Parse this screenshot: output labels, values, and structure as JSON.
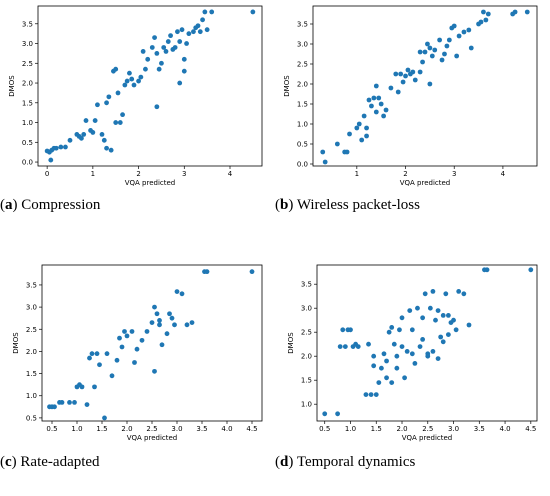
{
  "chart_data": [
    {
      "type": "scatter",
      "panel_id": "a",
      "caption": "Compression",
      "xlabel": "VQA predicted",
      "ylabel": "DMOS",
      "xlim": [
        -0.2,
        4.7
      ],
      "ylim": [
        -0.1,
        3.95
      ],
      "xticks": [
        "0",
        "1",
        "2",
        "3",
        "4"
      ],
      "yticks": [
        "0.0",
        "0.5",
        "1.0",
        "1.5",
        "2.0",
        "2.5",
        "3.0",
        "3.5"
      ],
      "color": "#1f77b4",
      "x": [
        0.0,
        0.05,
        0.1,
        0.15,
        0.2,
        0.3,
        0.4,
        0.5,
        0.08,
        0.65,
        0.7,
        0.75,
        0.8,
        0.85,
        0.95,
        1.0,
        1.05,
        1.1,
        1.2,
        1.25,
        1.3,
        1.35,
        1.4,
        1.45,
        1.5,
        1.55,
        1.6,
        1.65,
        1.7,
        1.75,
        1.8,
        1.85,
        1.9,
        2.0,
        2.05,
        2.1,
        2.15,
        2.2,
        2.3,
        2.35,
        2.4,
        2.45,
        2.5,
        2.55,
        2.6,
        2.65,
        2.7,
        2.75,
        2.8,
        2.85,
        2.9,
        2.95,
        3.0,
        3.05,
        3.1,
        3.2,
        3.25,
        3.3,
        3.35,
        3.4,
        3.45,
        3.5,
        3.6,
        4.5,
        1.3,
        1.5,
        2.4,
        2.9,
        3.0
      ],
      "y": [
        0.28,
        0.25,
        0.3,
        0.35,
        0.35,
        0.38,
        0.38,
        0.55,
        0.05,
        0.7,
        0.65,
        0.6,
        0.7,
        1.05,
        0.8,
        0.75,
        1.05,
        1.45,
        0.7,
        0.55,
        1.5,
        1.65,
        0.3,
        2.3,
        2.35,
        1.75,
        1.0,
        1.2,
        1.95,
        2.05,
        2.25,
        2.1,
        1.95,
        2.05,
        2.15,
        2.8,
        2.35,
        2.6,
        2.9,
        3.15,
        2.75,
        2.35,
        2.5,
        2.9,
        2.8,
        3.05,
        3.2,
        2.85,
        2.9,
        3.3,
        3.05,
        3.35,
        2.6,
        3.0,
        3.25,
        3.3,
        3.4,
        3.45,
        3.3,
        3.6,
        3.8,
        3.35,
        3.8,
        3.8,
        0.35,
        1.0,
        1.4,
        2.0,
        2.3
      ]
    },
    {
      "type": "scatter",
      "panel_id": "b",
      "caption": "Wireless packet-loss",
      "xlabel": "VQA predicted",
      "ylabel": "DMOS",
      "xlim": [
        0.1,
        4.7
      ],
      "ylim": [
        -0.05,
        3.95
      ],
      "xticks": [
        "1",
        "2",
        "3",
        "4"
      ],
      "yticks": [
        "0.0",
        "0.5",
        "1.0",
        "1.5",
        "2.0",
        "2.5",
        "3.0",
        "3.5"
      ],
      "color": "#1f77b4",
      "x": [
        0.3,
        0.35,
        0.6,
        0.75,
        0.8,
        0.85,
        1.0,
        1.05,
        1.1,
        1.15,
        1.2,
        1.25,
        1.3,
        1.35,
        1.4,
        1.45,
        1.5,
        1.55,
        1.6,
        1.7,
        1.8,
        1.85,
        1.9,
        1.95,
        2.0,
        2.05,
        2.1,
        2.15,
        2.2,
        2.3,
        2.35,
        2.4,
        2.45,
        2.5,
        2.55,
        2.6,
        2.7,
        2.75,
        2.8,
        2.85,
        2.9,
        2.95,
        3.0,
        3.05,
        3.1,
        3.2,
        3.3,
        3.35,
        3.5,
        3.55,
        3.6,
        3.65,
        3.7,
        4.2,
        4.25,
        4.5,
        1.2,
        1.4,
        2.5,
        2.3
      ],
      "y": [
        0.3,
        0.05,
        0.5,
        0.3,
        0.3,
        0.75,
        0.9,
        1.0,
        0.6,
        1.2,
        0.9,
        1.6,
        1.45,
        1.65,
        1.3,
        1.65,
        1.5,
        1.2,
        1.35,
        1.9,
        2.25,
        1.8,
        2.25,
        2.05,
        2.2,
        2.35,
        2.25,
        2.3,
        2.1,
        2.8,
        2.55,
        2.8,
        3.0,
        2.9,
        2.7,
        2.85,
        3.1,
        2.6,
        2.75,
        2.95,
        3.1,
        3.4,
        3.45,
        2.7,
        3.2,
        3.3,
        3.35,
        2.9,
        3.5,
        3.55,
        3.8,
        3.6,
        3.75,
        3.75,
        3.8,
        3.8,
        0.7,
        1.95,
        2.0,
        2.3
      ]
    },
    {
      "type": "scatter",
      "panel_id": "c",
      "caption": "Rate-adapted",
      "xlabel": "VQA predicted",
      "ylabel": "DMOS",
      "xlim": [
        0.3,
        4.7
      ],
      "ylim": [
        0.43,
        3.95
      ],
      "xticks": [
        "0.5",
        "1.0",
        "1.5",
        "2.0",
        "2.5",
        "3.0",
        "3.5",
        "4.0",
        "4.5"
      ],
      "yticks": [
        "0.5",
        "1.0",
        "1.5",
        "2.0",
        "2.5",
        "3.0",
        "3.5"
      ],
      "color": "#1f77b4",
      "x": [
        0.45,
        0.5,
        0.55,
        0.65,
        0.7,
        0.85,
        0.95,
        1.0,
        1.05,
        1.1,
        1.2,
        1.25,
        1.3,
        1.35,
        1.4,
        1.45,
        1.55,
        1.6,
        1.7,
        1.8,
        1.85,
        1.9,
        1.95,
        2.0,
        2.1,
        2.15,
        2.2,
        2.3,
        2.4,
        2.5,
        2.55,
        2.6,
        2.65,
        2.7,
        2.8,
        2.85,
        2.9,
        3.0,
        3.1,
        3.2,
        3.3,
        3.55,
        3.6,
        4.5,
        2.55,
        2.65,
        2.95
      ],
      "y": [
        0.75,
        0.75,
        0.75,
        0.85,
        0.85,
        0.85,
        0.85,
        1.2,
        1.25,
        1.2,
        0.8,
        1.85,
        1.95,
        1.2,
        1.95,
        1.7,
        0.5,
        1.95,
        1.45,
        1.8,
        2.3,
        2.1,
        2.45,
        2.35,
        2.45,
        1.75,
        2.05,
        2.25,
        2.45,
        2.65,
        3.0,
        2.85,
        2.7,
        2.15,
        2.4,
        2.85,
        2.75,
        3.35,
        3.3,
        2.6,
        2.65,
        3.8,
        3.8,
        3.8,
        1.55,
        2.6,
        2.6
      ]
    },
    {
      "type": "scatter",
      "panel_id": "d",
      "caption": "Temporal dynamics",
      "xlabel": "VQA predicted",
      "ylabel": "DMOS",
      "xlim": [
        0.35,
        4.62
      ],
      "ylim": [
        0.65,
        3.9
      ],
      "xticks": [
        "0.5",
        "1.0",
        "1.5",
        "2.0",
        "2.5",
        "3.0",
        "3.5",
        "4.0",
        "4.5"
      ],
      "yticks": [
        "1.0",
        "1.5",
        "2.0",
        "2.5",
        "3.0",
        "3.5"
      ],
      "color": "#1f77b4",
      "x": [
        0.5,
        0.75,
        0.8,
        0.85,
        0.9,
        0.95,
        1.0,
        1.05,
        1.1,
        1.15,
        1.3,
        1.35,
        1.4,
        1.45,
        1.5,
        1.55,
        1.6,
        1.65,
        1.7,
        1.75,
        1.8,
        1.85,
        1.9,
        1.95,
        2.0,
        2.05,
        2.1,
        2.15,
        2.2,
        2.25,
        2.3,
        2.35,
        2.4,
        2.45,
        2.5,
        2.55,
        2.6,
        2.65,
        2.7,
        2.75,
        2.8,
        2.85,
        2.9,
        2.95,
        3.0,
        3.05,
        3.1,
        3.2,
        3.3,
        3.6,
        3.65,
        4.5,
        1.45,
        1.7,
        1.9,
        2.2,
        2.5,
        2.7,
        2.9,
        1.8,
        2.0,
        2.4,
        2.6,
        2.8
      ],
      "y": [
        0.8,
        0.8,
        2.2,
        2.55,
        2.2,
        2.55,
        2.55,
        2.2,
        2.25,
        2.2,
        1.2,
        2.25,
        1.2,
        1.8,
        1.2,
        1.45,
        1.75,
        2.05,
        1.55,
        2.5,
        1.45,
        2.25,
        1.75,
        2.55,
        2.2,
        1.55,
        2.1,
        2.95,
        2.55,
        1.85,
        3.0,
        2.2,
        2.8,
        3.3,
        2.05,
        3.0,
        3.35,
        2.75,
        2.95,
        2.4,
        2.3,
        3.3,
        2.85,
        2.7,
        2.75,
        2.55,
        3.35,
        3.3,
        2.65,
        3.8,
        3.8,
        3.8,
        2.0,
        1.9,
        2.0,
        2.05,
        2.0,
        1.95,
        2.45,
        2.6,
        2.8,
        2.35,
        2.1,
        2.85
      ]
    }
  ]
}
